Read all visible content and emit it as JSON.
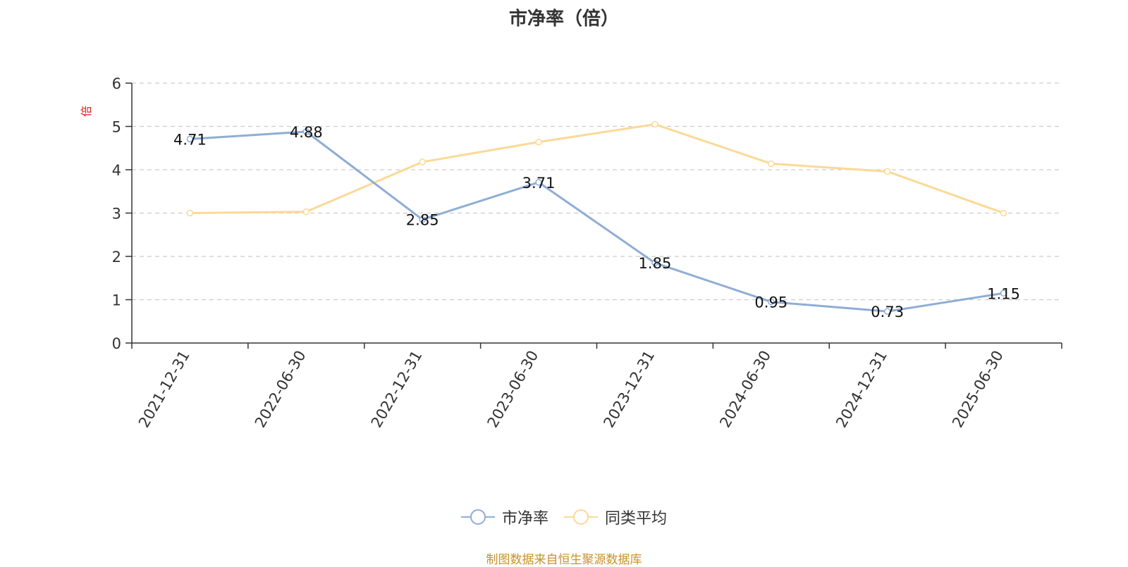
{
  "colors": {
    "series1": "#8fadd6",
    "series2": "#fbd996",
    "axis": "#333333",
    "grid": "#cccccc",
    "unit": "#dd2222",
    "source": "#c8912a"
  },
  "chart_data": {
    "type": "line",
    "title": "市净率（倍）",
    "ylabel": "倍",
    "xlabel": "",
    "ylim": [
      0,
      6
    ],
    "yticks": [
      0,
      1,
      2,
      3,
      4,
      5,
      6
    ],
    "grid": true,
    "legend_position": "bottom",
    "categories": [
      "2021-12-31",
      "2022-06-30",
      "2022-12-31",
      "2023-06-30",
      "2023-12-31",
      "2024-06-30",
      "2024-12-31",
      "2025-06-30"
    ],
    "series": [
      {
        "name": "市净率",
        "values": [
          4.71,
          4.88,
          2.85,
          3.71,
          1.85,
          0.95,
          0.73,
          1.15
        ],
        "labels": [
          "4.71",
          "4.88",
          "2.85",
          "3.71",
          "1.85",
          "0.95",
          "0.73",
          "1.15"
        ]
      },
      {
        "name": "同类平均",
        "values": [
          3.0,
          3.03,
          4.18,
          4.64,
          5.05,
          4.14,
          3.96,
          3.0
        ]
      }
    ]
  },
  "footer": {
    "source": "制图数据来自恒生聚源数据库"
  }
}
